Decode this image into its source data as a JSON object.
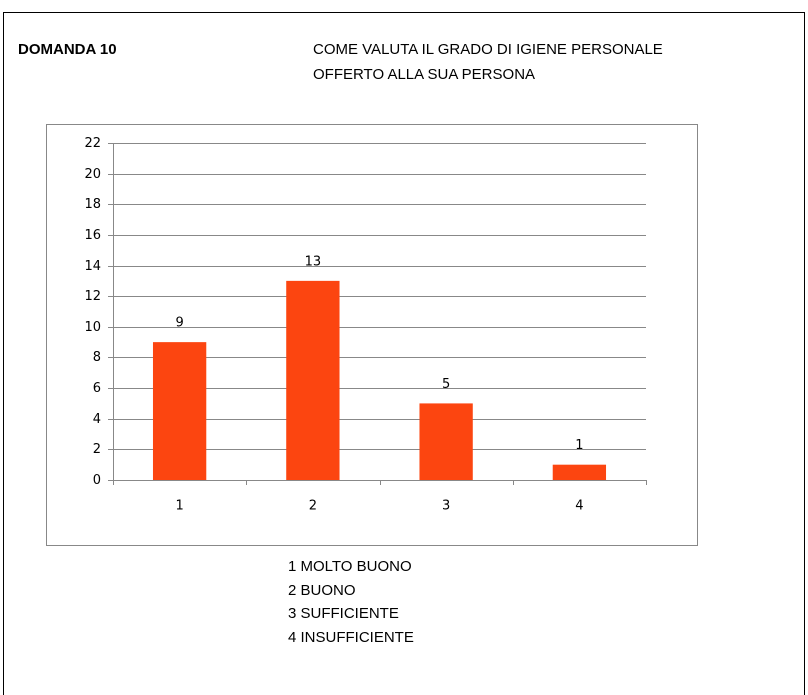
{
  "header": {
    "label": "DOMANDA 10",
    "title": [
      "COME VALUTA IL GRADO DI IGIENE PERSONALE",
      "OFFERTO ALLA SUA PERSONA"
    ]
  },
  "chart_data": {
    "type": "bar",
    "categories": [
      "1",
      "2",
      "3",
      "4"
    ],
    "values": [
      9,
      13,
      5,
      1
    ],
    "color": "#fc4510",
    "ylim": [
      0,
      22
    ],
    "yticks": [
      0,
      2,
      4,
      6,
      8,
      10,
      12,
      14,
      16,
      18,
      20,
      22
    ],
    "grid": true
  },
  "legend": [
    "1 MOLTO BUONO",
    "2 BUONO",
    "3 SUFFICIENTE",
    "4 INSUFFICIENTE"
  ]
}
